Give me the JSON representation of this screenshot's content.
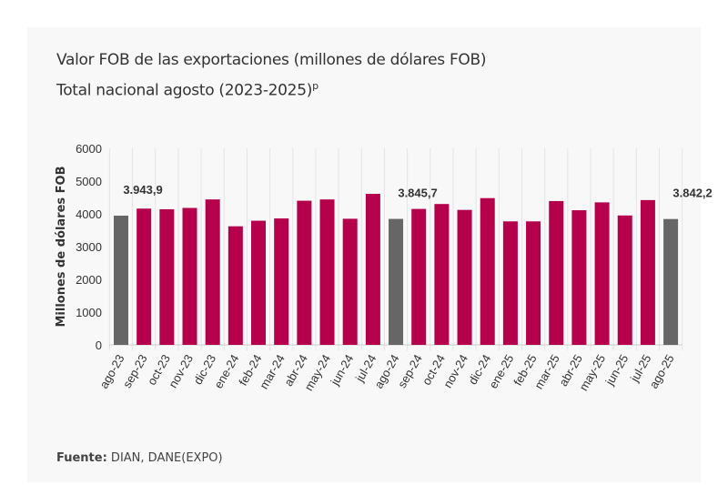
{
  "title": "Valor FOB de las exportaciones (millones de dólares FOB)",
  "subtitle_main": "Total nacional agosto (2023-2025)",
  "subtitle_sup": "p",
  "source_label": "Fuente:",
  "source_text": " DIAN, DANE(EXPO)",
  "colors": {
    "highlight": "#666666",
    "default": "#b5004b",
    "grid": "#e4e4e4"
  },
  "chart_data": {
    "type": "bar",
    "title": "Valor FOB de las exportaciones (millones de dólares FOB)",
    "subtitle": "Total nacional agosto (2023-2025)p",
    "xlabel": "",
    "ylabel": "Millones de dólares FOB",
    "ylim": [
      0,
      6000
    ],
    "yticks": [
      0,
      1000,
      2000,
      3000,
      4000,
      5000,
      6000
    ],
    "grid": "vertical",
    "categories": [
      "ago-23",
      "sep-23",
      "oct-23",
      "nov-23",
      "dic-23",
      "ene-24",
      "feb-24",
      "mar-24",
      "abr-24",
      "may-24",
      "jun-24",
      "jul-24",
      "ago-24",
      "sep-24",
      "oct-24",
      "nov-24",
      "dic-24",
      "ene-25",
      "feb-25",
      "mar-25",
      "abr-25",
      "may-25",
      "jun-25",
      "jul-25",
      "ago-25"
    ],
    "values": [
      3943.9,
      4160,
      4140,
      4180,
      4440,
      3620,
      3790,
      3860,
      4400,
      4440,
      3850,
      4610,
      3845.7,
      4150,
      4300,
      4120,
      4480,
      3770,
      3770,
      4390,
      4110,
      4350,
      3950,
      4420,
      3842.2
    ],
    "highlighted": [
      "ago-23",
      "ago-24",
      "ago-25"
    ],
    "data_labels": [
      {
        "category": "ago-23",
        "text": "3.943,9"
      },
      {
        "category": "ago-24",
        "text": "3.845,7"
      },
      {
        "category": "ago-25",
        "text": "3.842,2"
      }
    ]
  }
}
